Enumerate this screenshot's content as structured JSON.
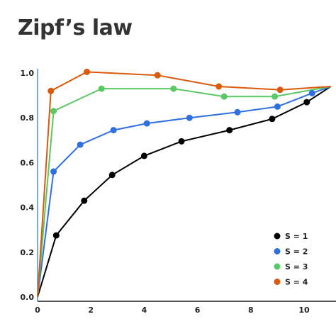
{
  "chart_data": {
    "type": "line",
    "title": "Zipf’s law",
    "xlabel": "",
    "ylabel": "",
    "xlim": [
      0,
      11
    ],
    "ylim": [
      0,
      1.0
    ],
    "xticks": [
      "0",
      "2",
      "4",
      "6",
      "8",
      "10"
    ],
    "yticks": [
      "0.0",
      "0.2",
      "0.4",
      "0.6",
      "0.8",
      "1.0"
    ],
    "grid": false,
    "legend_position": "bottom-right",
    "series": [
      {
        "name": "S = 1",
        "color": "#000000",
        "x": [
          0,
          0.7,
          1.75,
          2.8,
          4.0,
          5.4,
          7.2,
          8.8,
          10.1,
          11.0
        ],
        "y": [
          0.0,
          0.275,
          0.43,
          0.545,
          0.63,
          0.695,
          0.745,
          0.795,
          0.87,
          0.94
        ],
        "markers": [
          false,
          true,
          true,
          true,
          true,
          true,
          true,
          true,
          true,
          false
        ]
      },
      {
        "name": "S = 2",
        "color": "#2f6fe0",
        "x": [
          0,
          0.6,
          1.6,
          2.85,
          4.1,
          5.7,
          7.5,
          9.0,
          10.3,
          11.0
        ],
        "y": [
          0.0,
          0.56,
          0.68,
          0.745,
          0.775,
          0.8,
          0.825,
          0.85,
          0.91,
          0.94
        ],
        "markers": [
          false,
          true,
          true,
          true,
          true,
          true,
          true,
          true,
          true,
          false
        ]
      },
      {
        "name": "S = 3",
        "color": "#5ac964",
        "x": [
          0,
          0.6,
          2.4,
          5.1,
          7.0,
          8.9,
          11.0
        ],
        "y": [
          0.0,
          0.83,
          0.93,
          0.93,
          0.895,
          0.895,
          0.94
        ],
        "markers": [
          false,
          true,
          true,
          true,
          true,
          true,
          false
        ]
      },
      {
        "name": "S = 4",
        "color": "#d95a0c",
        "x": [
          0,
          0.5,
          1.85,
          4.5,
          6.8,
          9.1,
          11.0
        ],
        "y": [
          0.0,
          0.92,
          1.005,
          0.99,
          0.94,
          0.925,
          0.94
        ],
        "markers": [
          false,
          true,
          true,
          true,
          true,
          true,
          false
        ]
      }
    ]
  }
}
